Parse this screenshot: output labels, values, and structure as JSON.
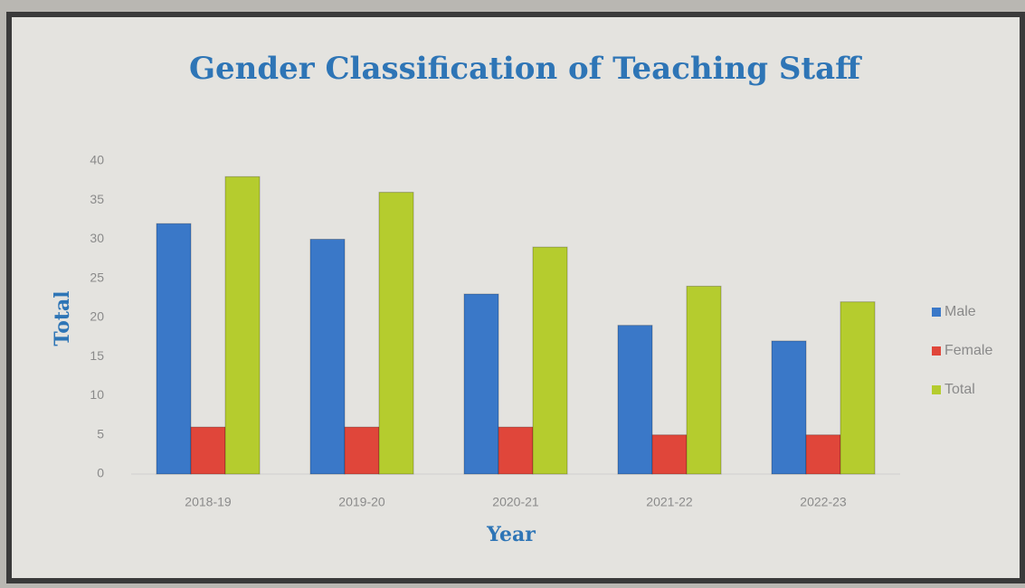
{
  "chart_data": {
    "type": "bar",
    "title": "Gender Classification of Teaching Staff",
    "x_label": "Year",
    "y_label": "Total",
    "categories": [
      "2018-19",
      "2019-20",
      "2020-21",
      "2021-22",
      "2022-23"
    ],
    "series": [
      {
        "name": "Male",
        "color": "#3a78c8",
        "values": [
          32,
          30,
          23,
          19,
          17
        ]
      },
      {
        "name": "Female",
        "color": "#e0463a",
        "values": [
          6,
          6,
          6,
          5,
          5
        ]
      },
      {
        "name": "Total",
        "color": "#b5cc2e",
        "values": [
          38,
          36,
          29,
          24,
          22
        ]
      }
    ],
    "ylim": [
      0,
      40
    ],
    "yticks": [
      0,
      5,
      10,
      15,
      20,
      25,
      30,
      35,
      40
    ],
    "grid": false,
    "legend": "right"
  }
}
